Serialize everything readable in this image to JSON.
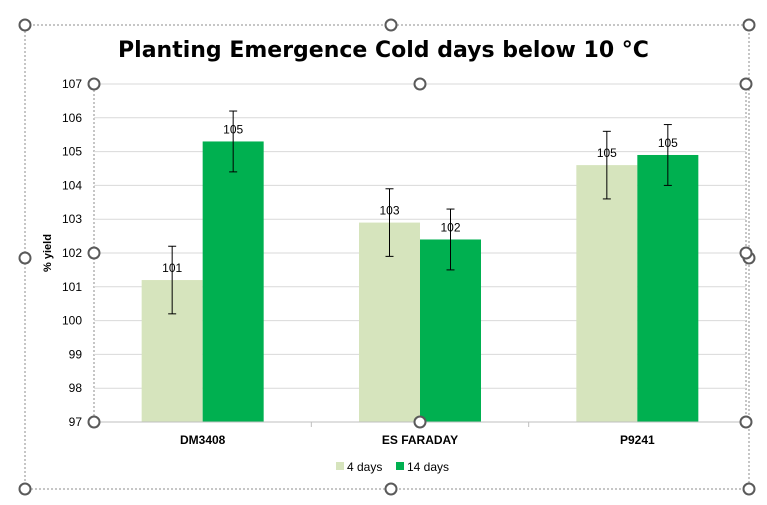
{
  "chart_data": {
    "type": "bar",
    "title": "Planting Emergence  Cold days below 10 °C",
    "xlabel": "",
    "ylabel": "% yield",
    "ylim": [
      97,
      107
    ],
    "yticks": [
      97,
      98,
      99,
      100,
      101,
      102,
      103,
      104,
      105,
      106,
      107
    ],
    "grid": true,
    "legend_position": "bottom",
    "categories": [
      "DM3408",
      "ES FARADAY",
      "P9241"
    ],
    "series": [
      {
        "name": "4 days",
        "color": "#d6e4bd",
        "values": [
          101.2,
          102.9,
          104.6
        ],
        "error": [
          1.0,
          1.0,
          1.0
        ],
        "labels": [
          "101",
          "103",
          "105"
        ]
      },
      {
        "name": "14 days",
        "color": "#00b050",
        "values": [
          105.3,
          102.4,
          104.9
        ],
        "error": [
          0.9,
          0.9,
          0.9
        ],
        "labels": [
          "105",
          "102",
          "105"
        ]
      }
    ]
  }
}
